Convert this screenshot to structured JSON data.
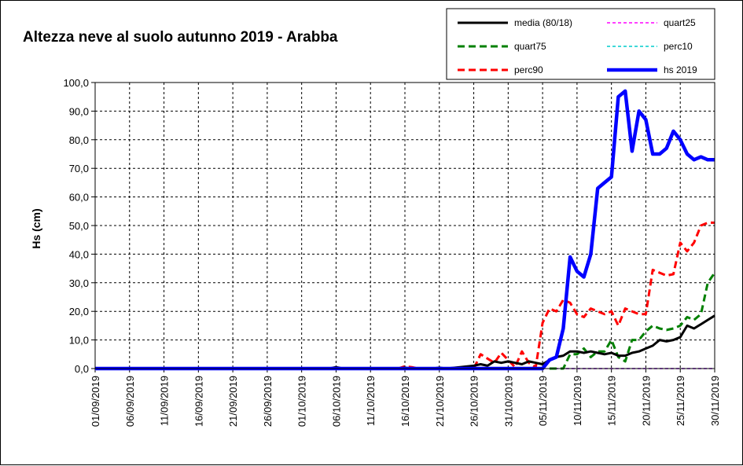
{
  "chart_data": {
    "type": "line",
    "title": "Altezza neve al suolo autunno 2019 - Arabba",
    "ylabel": "Hs (cm)",
    "xlabel": "",
    "ylim": [
      0,
      100
    ],
    "y_ticks": [
      "0,0",
      "10,0",
      "20,0",
      "30,0",
      "40,0",
      "50,0",
      "60,0",
      "70,0",
      "80,0",
      "90,0",
      "100,0"
    ],
    "x_ticks": [
      "01/09/2019",
      "06/09/2019",
      "11/09/2019",
      "16/09/2019",
      "21/09/2019",
      "26/09/2019",
      "01/10/2019",
      "06/10/2019",
      "11/10/2019",
      "16/10/2019",
      "21/10/2019",
      "26/10/2019",
      "31/10/2019",
      "05/11/2019",
      "10/11/2019",
      "15/11/2019",
      "20/11/2019",
      "25/11/2019",
      "30/11/2019"
    ],
    "x_range": [
      "01/09/2019",
      "30/11/2019"
    ],
    "grid": true,
    "legend_position": "top-right",
    "series": [
      {
        "name": "media (80/18)",
        "color": "#000000",
        "dash": "solid",
        "points": [
          [
            "01/09/2019",
            0
          ],
          [
            "05/10/2019",
            0
          ],
          [
            "06/10/2019",
            0.5
          ],
          [
            "07/10/2019",
            0
          ],
          [
            "15/10/2019",
            0
          ],
          [
            "16/10/2019",
            0.3
          ],
          [
            "17/10/2019",
            0
          ],
          [
            "20/10/2019",
            0
          ],
          [
            "21/10/2019",
            0.3
          ],
          [
            "22/10/2019",
            0
          ],
          [
            "24/10/2019",
            0.5
          ],
          [
            "26/10/2019",
            1
          ],
          [
            "27/10/2019",
            1.5
          ],
          [
            "28/10/2019",
            1
          ],
          [
            "29/10/2019",
            2.5
          ],
          [
            "30/10/2019",
            2
          ],
          [
            "31/10/2019",
            2.5
          ],
          [
            "01/11/2019",
            2
          ],
          [
            "02/11/2019",
            1.5
          ],
          [
            "03/11/2019",
            2.5
          ],
          [
            "04/11/2019",
            2
          ],
          [
            "05/11/2019",
            1.5
          ],
          [
            "06/11/2019",
            3
          ],
          [
            "07/11/2019",
            4
          ],
          [
            "08/11/2019",
            4.5
          ],
          [
            "09/11/2019",
            6
          ],
          [
            "10/11/2019",
            6
          ],
          [
            "11/11/2019",
            5.5
          ],
          [
            "12/11/2019",
            6
          ],
          [
            "13/11/2019",
            5.5
          ],
          [
            "14/11/2019",
            5
          ],
          [
            "15/11/2019",
            5.5
          ],
          [
            "16/11/2019",
            4.5
          ],
          [
            "17/11/2019",
            4.5
          ],
          [
            "18/11/2019",
            5.5
          ],
          [
            "19/11/2019",
            6
          ],
          [
            "20/11/2019",
            7
          ],
          [
            "21/11/2019",
            8
          ],
          [
            "22/11/2019",
            10
          ],
          [
            "23/11/2019",
            9.5
          ],
          [
            "24/11/2019",
            10
          ],
          [
            "25/11/2019",
            11
          ],
          [
            "26/11/2019",
            15
          ],
          [
            "27/11/2019",
            14
          ],
          [
            "28/11/2019",
            15.5
          ],
          [
            "29/11/2019",
            17
          ],
          [
            "30/11/2019",
            18.5
          ]
        ]
      },
      {
        "name": "quart25",
        "color": "#ff00ff",
        "dash": "dashed",
        "points": [
          [
            "06/11/2019",
            0
          ],
          [
            "30/11/2019",
            0
          ]
        ]
      },
      {
        "name": "quart75",
        "color": "#008000",
        "dash": "dashed",
        "points": [
          [
            "06/11/2019",
            0
          ],
          [
            "07/11/2019",
            0
          ],
          [
            "08/11/2019",
            0
          ],
          [
            "09/11/2019",
            5
          ],
          [
            "10/11/2019",
            5
          ],
          [
            "11/11/2019",
            7
          ],
          [
            "12/11/2019",
            4
          ],
          [
            "13/11/2019",
            6
          ],
          [
            "14/11/2019",
            6
          ],
          [
            "15/11/2019",
            10
          ],
          [
            "16/11/2019",
            4
          ],
          [
            "17/11/2019",
            2.5
          ],
          [
            "18/11/2019",
            10
          ],
          [
            "19/11/2019",
            10
          ],
          [
            "20/11/2019",
            13
          ],
          [
            "21/11/2019",
            15
          ],
          [
            "22/11/2019",
            14
          ],
          [
            "23/11/2019",
            13.5
          ],
          [
            "24/11/2019",
            14
          ],
          [
            "25/11/2019",
            15
          ],
          [
            "26/11/2019",
            18
          ],
          [
            "27/11/2019",
            17
          ],
          [
            "28/11/2019",
            19
          ],
          [
            "29/11/2019",
            30
          ],
          [
            "30/11/2019",
            33.5
          ]
        ]
      },
      {
        "name": "perc10",
        "color": "#00cccc",
        "dash": "dashed",
        "points": [
          [
            "06/11/2019",
            0
          ],
          [
            "30/11/2019",
            0
          ]
        ]
      },
      {
        "name": "perc90",
        "color": "#ff0000",
        "dash": "dashed",
        "points": [
          [
            "15/10/2019",
            0
          ],
          [
            "16/10/2019",
            0.8
          ],
          [
            "17/10/2019",
            0.5
          ],
          [
            "18/10/2019",
            0
          ],
          [
            "26/10/2019",
            0
          ],
          [
            "27/10/2019",
            5
          ],
          [
            "28/10/2019",
            3.5
          ],
          [
            "29/10/2019",
            2
          ],
          [
            "30/10/2019",
            5.5
          ],
          [
            "31/10/2019",
            3
          ],
          [
            "01/11/2019",
            0.5
          ],
          [
            "02/11/2019",
            6
          ],
          [
            "03/11/2019",
            2
          ],
          [
            "04/11/2019",
            0.5
          ],
          [
            "05/11/2019",
            16
          ],
          [
            "06/11/2019",
            21
          ],
          [
            "07/11/2019",
            20
          ],
          [
            "08/11/2019",
            24
          ],
          [
            "09/11/2019",
            23
          ],
          [
            "10/11/2019",
            19
          ],
          [
            "11/11/2019",
            18
          ],
          [
            "12/11/2019",
            21
          ],
          [
            "13/11/2019",
            20
          ],
          [
            "14/11/2019",
            19
          ],
          [
            "15/11/2019",
            20
          ],
          [
            "16/11/2019",
            15
          ],
          [
            "17/11/2019",
            21
          ],
          [
            "18/11/2019",
            20
          ],
          [
            "19/11/2019",
            19
          ],
          [
            "20/11/2019",
            19
          ],
          [
            "21/11/2019",
            34.5
          ],
          [
            "22/11/2019",
            33.5
          ],
          [
            "23/11/2019",
            32.5
          ],
          [
            "24/11/2019",
            33
          ],
          [
            "25/11/2019",
            44
          ],
          [
            "26/11/2019",
            41
          ],
          [
            "27/11/2019",
            44
          ],
          [
            "28/11/2019",
            50
          ],
          [
            "29/11/2019",
            51
          ],
          [
            "30/11/2019",
            51
          ]
        ]
      },
      {
        "name": "hs 2019",
        "color": "#0000ff",
        "dash": "solid",
        "points": [
          [
            "01/09/2019",
            0
          ],
          [
            "05/11/2019",
            0
          ],
          [
            "06/11/2019",
            3
          ],
          [
            "07/11/2019",
            4
          ],
          [
            "08/11/2019",
            14
          ],
          [
            "09/11/2019",
            39
          ],
          [
            "10/11/2019",
            34
          ],
          [
            "11/11/2019",
            32
          ],
          [
            "12/11/2019",
            40
          ],
          [
            "13/11/2019",
            63
          ],
          [
            "14/11/2019",
            65
          ],
          [
            "15/11/2019",
            67
          ],
          [
            "16/11/2019",
            95
          ],
          [
            "17/11/2019",
            97
          ],
          [
            "18/11/2019",
            76
          ],
          [
            "19/11/2019",
            90
          ],
          [
            "20/11/2019",
            87
          ],
          [
            "21/11/2019",
            75
          ],
          [
            "22/11/2019",
            75
          ],
          [
            "23/11/2019",
            77
          ],
          [
            "24/11/2019",
            83
          ],
          [
            "25/11/2019",
            80
          ],
          [
            "26/11/2019",
            75
          ],
          [
            "27/11/2019",
            73
          ],
          [
            "28/11/2019",
            74
          ],
          [
            "29/11/2019",
            73
          ],
          [
            "30/11/2019",
            73
          ]
        ]
      }
    ]
  }
}
